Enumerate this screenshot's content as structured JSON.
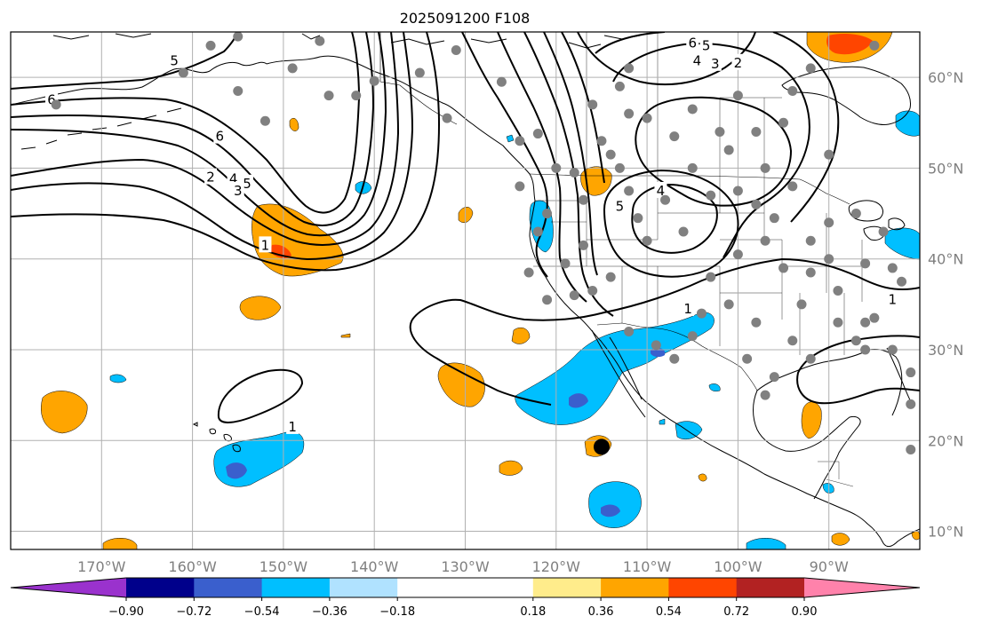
{
  "map": {
    "title": "2025091200 F108",
    "extent": {
      "lon_min": -180,
      "lon_max": -80,
      "lat_min": 8,
      "lat_max": 65
    },
    "lat_ticks": [
      {
        "value": 60,
        "label": "60°N"
      },
      {
        "value": 50,
        "label": "50°N"
      },
      {
        "value": 40,
        "label": "40°N"
      },
      {
        "value": 30,
        "label": "30°N"
      },
      {
        "value": 20,
        "label": "20°N"
      },
      {
        "value": 10,
        "label": "10°N"
      }
    ],
    "lon_ticks": [
      {
        "value": -170,
        "label": "170°W"
      },
      {
        "value": -160,
        "label": "160°W"
      },
      {
        "value": -150,
        "label": "150°W"
      },
      {
        "value": -140,
        "label": "140°W"
      },
      {
        "value": -130,
        "label": "130°W"
      },
      {
        "value": -120,
        "label": "120°W"
      },
      {
        "value": -110,
        "label": "110°W"
      },
      {
        "value": -100,
        "label": "100°W"
      },
      {
        "value": -90,
        "label": "90°W"
      }
    ],
    "contour_labels": [
      {
        "text": "6",
        "lon": -175.5,
        "lat": 57.5
      },
      {
        "text": "5",
        "lon": -162,
        "lat": 61.8
      },
      {
        "text": "6",
        "lon": -157,
        "lat": 53.5
      },
      {
        "text": "2",
        "lon": -158,
        "lat": 49
      },
      {
        "text": "4",
        "lon": -155.5,
        "lat": 48.8
      },
      {
        "text": "5",
        "lon": -154,
        "lat": 48.3
      },
      {
        "text": "3",
        "lon": -155,
        "lat": 47.5
      },
      {
        "text": "1",
        "lon": -152,
        "lat": 41.5
      },
      {
        "text": "1",
        "lon": -149,
        "lat": 21.5
      },
      {
        "text": "6",
        "lon": -105,
        "lat": 63.8
      },
      {
        "text": "5",
        "lon": -103.5,
        "lat": 63.5
      },
      {
        "text": "4",
        "lon": -104.5,
        "lat": 61.8
      },
      {
        "text": "3",
        "lon": -102.5,
        "lat": 61.5
      },
      {
        "text": "2",
        "lon": -100,
        "lat": 61.6
      },
      {
        "text": "4",
        "lon": -108.5,
        "lat": 47.5
      },
      {
        "text": "5",
        "lon": -113,
        "lat": 45.8
      },
      {
        "text": "1",
        "lon": -105.5,
        "lat": 34.5
      },
      {
        "text": "1",
        "lon": -83,
        "lat": 35.5
      }
    ],
    "station_points": [
      [
        -175,
        57
      ],
      [
        -161,
        60.5
      ],
      [
        -155,
        58.5
      ],
      [
        -152,
        55.2
      ],
      [
        -149,
        61
      ],
      [
        -145,
        58
      ],
      [
        -142,
        58
      ],
      [
        -140,
        59.6
      ],
      [
        -135,
        60.5
      ],
      [
        -131,
        63
      ],
      [
        -132,
        55.5
      ],
      [
        -126,
        59.5
      ],
      [
        -124,
        48
      ],
      [
        -122,
        53.8
      ],
      [
        -121,
        45
      ],
      [
        -122,
        43
      ],
      [
        -123,
        38.5
      ],
      [
        -119,
        39.5
      ],
      [
        -118,
        36
      ],
      [
        -120,
        50
      ],
      [
        -117,
        46.5
      ],
      [
        -118,
        49.5
      ],
      [
        -115,
        53
      ],
      [
        -114,
        51.5
      ],
      [
        -113,
        50
      ],
      [
        -112,
        47.5
      ],
      [
        -111,
        44.5
      ],
      [
        -110,
        42
      ],
      [
        -106,
        43
      ],
      [
        -103,
        38
      ],
      [
        -101,
        35
      ],
      [
        -98,
        33
      ],
      [
        -104,
        34
      ],
      [
        -112,
        32
      ],
      [
        -109,
        30.5
      ],
      [
        -107,
        29
      ],
      [
        -105,
        31.5
      ],
      [
        -99,
        29
      ],
      [
        -96,
        27
      ],
      [
        -97,
        25
      ],
      [
        -94,
        31
      ],
      [
        -93,
        35
      ],
      [
        -92,
        29
      ],
      [
        -89,
        33
      ],
      [
        -87,
        31
      ],
      [
        -85,
        33.5
      ],
      [
        -86,
        30
      ],
      [
        -83,
        30
      ],
      [
        -81,
        27.5
      ],
      [
        -80,
        25.8
      ],
      [
        -81,
        24
      ],
      [
        -82,
        37.5
      ],
      [
        -80,
        40.5
      ],
      [
        -83,
        39
      ],
      [
        -86,
        39.5
      ],
      [
        -90,
        40
      ],
      [
        -92,
        42
      ],
      [
        -95,
        39
      ],
      [
        -97,
        42
      ],
      [
        -100,
        40.5
      ],
      [
        -98,
        46
      ],
      [
        -100,
        47.5
      ],
      [
        -103,
        47
      ],
      [
        -108,
        46.5
      ],
      [
        -105,
        50
      ],
      [
        -101,
        52
      ],
      [
        -97,
        50
      ],
      [
        -94,
        48
      ],
      [
        -90,
        44
      ],
      [
        -87,
        45
      ],
      [
        -84,
        43
      ],
      [
        -80,
        44
      ],
      [
        -95,
        55
      ],
      [
        -90,
        51.5
      ],
      [
        -98,
        54
      ],
      [
        -102,
        54
      ],
      [
        -107,
        53.5
      ],
      [
        -110,
        55.5
      ],
      [
        -112,
        56
      ],
      [
        -105,
        56.5
      ],
      [
        -100,
        58
      ],
      [
        -94,
        58.5
      ],
      [
        -92,
        61
      ],
      [
        -80,
        51
      ],
      [
        -85,
        63.5
      ],
      [
        -80,
        63
      ],
      [
        -120,
        65
      ],
      [
        -155,
        64.5
      ],
      [
        -158,
        63.5
      ],
      [
        -124,
        53
      ],
      [
        -116,
        57
      ],
      [
        -113,
        59
      ],
      [
        -112,
        61
      ],
      [
        -81,
        19
      ],
      [
        -146,
        64
      ],
      [
        -96,
        44.5
      ],
      [
        -114,
        38
      ],
      [
        -117,
        41.5
      ],
      [
        -121,
        35.5
      ],
      [
        -116,
        36.5
      ],
      [
        -92,
        38.5
      ],
      [
        -86,
        33
      ],
      [
        -89,
        36.5
      ]
    ],
    "storm_center": {
      "lon": -115,
      "lat": 19.3
    }
  },
  "colorbar": {
    "boundaries": [
      -0.9,
      -0.72,
      -0.54,
      -0.36,
      -0.18,
      0.18,
      0.36,
      0.54,
      0.72,
      0.9
    ],
    "labels": [
      "−0.90",
      "−0.72",
      "−0.54",
      "−0.36",
      "−0.18",
      "0.18",
      "0.36",
      "0.54",
      "0.72",
      "0.90"
    ],
    "colors": [
      "#9a32cd",
      "#00008b",
      "#3a5fcd",
      "#00bfff",
      "#b0e2ff",
      "#ffffff",
      "#ffec8b",
      "#ffa500",
      "#ff4500",
      "#b22222",
      "#ff82ab"
    ]
  },
  "style": {
    "grid_color": "#b0b0b0",
    "station_color": "#808080",
    "tick_label_color": "#7f7f7f",
    "coast_color": "#000000"
  }
}
